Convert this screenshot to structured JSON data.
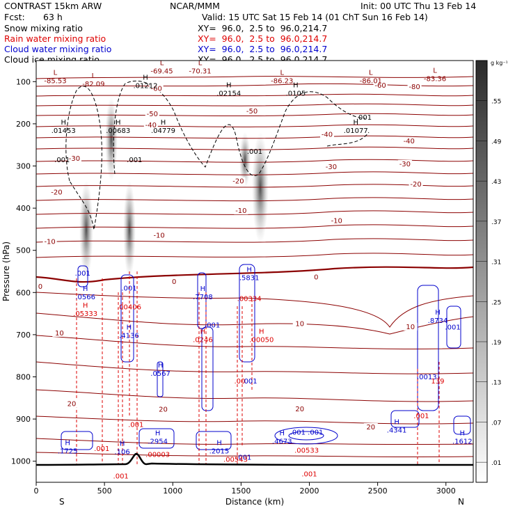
{
  "header": {
    "model": "CONTRAST 15km ARW",
    "center": "NCAR/MMM",
    "init": "Init: 00 UTC Thu 13 Feb 14",
    "fcst_label": "Fcst:",
    "fcst_value": "63 h",
    "valid": "Valid: 15 UTC Sat 15 Feb 14 (01 ChT Sun 16 Feb 14)"
  },
  "fields": [
    {
      "name": "Snow mixing ratio",
      "xy": "XY=  96.0,  2.5 to  96.0,214.7",
      "color": "#000000"
    },
    {
      "name": "Rain water mixing ratio",
      "xy": "XY=  96.0,  2.5 to  96.0,214.7",
      "color": "#dd0000"
    },
    {
      "name": "Cloud water mixing ratio",
      "xy": "XY=  96.0,  2.5 to  96.0,214.7",
      "color": "#0000cc"
    },
    {
      "name": "Cloud ice mixing ratio",
      "xy": "XY=  96.0,  2.5 to  96.0,214.7",
      "color": "#000000"
    }
  ],
  "chart_data": {
    "type": "contour-cross-section",
    "xlabel": "Distance (km)",
    "ylabel": "Pressure (hPa)",
    "xlim": [
      0,
      3200
    ],
    "ylim": [
      1050,
      50
    ],
    "x_ticks": [
      0,
      500,
      1000,
      1500,
      2000,
      2500,
      3000
    ],
    "y_ticks": [
      100,
      200,
      300,
      400,
      500,
      600,
      700,
      800,
      900,
      1000
    ],
    "end_labels": {
      "left": "S",
      "right": "N"
    },
    "colorbar": {
      "unit": "g kg⁻¹",
      "levels": [
        ".55",
        ".49",
        ".43",
        ".37",
        ".31",
        ".25",
        ".19",
        ".13",
        ".07",
        ".01"
      ]
    },
    "temperature_contour_labels": [
      {
        "x": 30,
        "p": 590,
        "text": "0"
      },
      {
        "x": 1010,
        "p": 578,
        "text": "0"
      },
      {
        "x": 2050,
        "p": 567,
        "text": "0"
      },
      {
        "x": 100,
        "p": 483,
        "text": "-10"
      },
      {
        "x": 900,
        "p": 468,
        "text": "-10"
      },
      {
        "x": 2200,
        "p": 434,
        "text": "-10"
      },
      {
        "x": 1500,
        "p": 410,
        "text": "-10"
      },
      {
        "x": 150,
        "p": 366,
        "text": "-20"
      },
      {
        "x": 1480,
        "p": 340,
        "text": "-20"
      },
      {
        "x": 2780,
        "p": 347,
        "text": "-20"
      },
      {
        "x": 280,
        "p": 286,
        "text": "-30"
      },
      {
        "x": 2160,
        "p": 306,
        "text": "-30"
      },
      {
        "x": 2700,
        "p": 299,
        "text": "-30"
      },
      {
        "x": 840,
        "p": 207,
        "text": "-40"
      },
      {
        "x": 2130,
        "p": 229,
        "text": "-40"
      },
      {
        "x": 2730,
        "p": 245,
        "text": "-40"
      },
      {
        "x": 850,
        "p": 180,
        "text": "-50"
      },
      {
        "x": 1580,
        "p": 174,
        "text": "-50"
      },
      {
        "x": 880,
        "p": 120,
        "text": "-60"
      },
      {
        "x": 2520,
        "p": 113,
        "text": "-60"
      },
      {
        "x": 2770,
        "p": 116,
        "text": "-80"
      },
      {
        "x": 170,
        "p": 700,
        "text": "10"
      },
      {
        "x": 1930,
        "p": 678,
        "text": "10"
      },
      {
        "x": 2740,
        "p": 685,
        "text": "10"
      },
      {
        "x": 260,
        "p": 868,
        "text": "20"
      },
      {
        "x": 930,
        "p": 881,
        "text": "20"
      },
      {
        "x": 1930,
        "p": 880,
        "text": "20"
      },
      {
        "x": 2450,
        "p": 923,
        "text": "20"
      }
    ],
    "low_labels": [
      {
        "x": 140,
        "p": 100,
        "value": "-85.53"
      },
      {
        "x": 420,
        "p": 108,
        "value": "-82.09"
      },
      {
        "x": 920,
        "p": 77,
        "value": "-69.45"
      },
      {
        "x": 1200,
        "p": 77,
        "value": "-70.31"
      },
      {
        "x": 1800,
        "p": 100,
        "value": "-86.23"
      },
      {
        "x": 2450,
        "p": 100,
        "value": "-86.01"
      },
      {
        "x": 2920,
        "p": 95,
        "value": "-83.36"
      }
    ],
    "high_labels": [
      {
        "x": 200,
        "p": 218,
        "value": ".01453",
        "color": "#000000"
      },
      {
        "x": 600,
        "p": 218,
        "value": ".00683",
        "color": "#000000"
      },
      {
        "x": 930,
        "p": 218,
        "value": ".04779",
        "color": "#000000"
      },
      {
        "x": 800,
        "p": 112,
        "value": ".01212",
        "color": "#000000"
      },
      {
        "x": 1410,
        "p": 130,
        "value": ".02154",
        "color": "#000000"
      },
      {
        "x": 1900,
        "p": 130,
        "value": ".0105",
        "color": "#000000"
      },
      {
        "x": 2340,
        "p": 218,
        "value": ".01077",
        "color": "#000000"
      },
      {
        "x": 360,
        "p": 613,
        "value": ".0566",
        "color": "#0000cc"
      },
      {
        "x": 1220,
        "p": 613,
        "value": ".7708",
        "color": "#0000cc"
      },
      {
        "x": 1560,
        "p": 567,
        "value": ".5831",
        "color": "#0000cc"
      },
      {
        "x": 680,
        "p": 704,
        "value": ".4136",
        "color": "#0000cc"
      },
      {
        "x": 910,
        "p": 794,
        "value": ".0567",
        "color": "#0000cc"
      },
      {
        "x": 2940,
        "p": 669,
        "value": ".8734",
        "color": "#0000cc"
      },
      {
        "x": 230,
        "p": 978,
        "value": ".1725",
        "color": "#0000cc"
      },
      {
        "x": 630,
        "p": 980,
        "value": ".106",
        "color": "#0000cc"
      },
      {
        "x": 890,
        "p": 955,
        "value": ".2954",
        "color": "#0000cc"
      },
      {
        "x": 1340,
        "p": 978,
        "value": ".2015",
        "color": "#0000cc"
      },
      {
        "x": 1800,
        "p": 955,
        "value": ".4673",
        "color": "#0000cc"
      },
      {
        "x": 2640,
        "p": 929,
        "value": ".4341",
        "color": "#0000cc"
      },
      {
        "x": 3120,
        "p": 955,
        "value": ".1612",
        "color": "#0000cc"
      },
      {
        "x": 360,
        "p": 652,
        "value": ".05333",
        "color": "#dd0000"
      },
      {
        "x": 1220,
        "p": 714,
        "value": ".0246",
        "color": "#dd0000"
      },
      {
        "x": 1650,
        "p": 714,
        "value": ".00050",
        "color": "#dd0000"
      }
    ],
    "misc_labels": [
      {
        "x": 340,
        "p": 560,
        "text": ".001",
        "color": "#0000cc"
      },
      {
        "x": 680,
        "p": 595,
        "text": ".001",
        "color": "#0000cc"
      },
      {
        "x": 680,
        "p": 640,
        "text": ".00406",
        "color": "#dd0000"
      },
      {
        "x": 1560,
        "p": 620,
        "text": ".00334",
        "color": "#dd0000"
      },
      {
        "x": 1290,
        "p": 683,
        "text": ".001",
        "color": "#0000cc"
      },
      {
        "x": 1490,
        "p": 816,
        "text": ".00",
        "color": "#dd0000"
      },
      {
        "x": 1570,
        "p": 816,
        "text": "001",
        "color": "#0000cc"
      },
      {
        "x": 2860,
        "p": 806,
        "text": ".0013",
        "color": "#0000cc"
      },
      {
        "x": 2940,
        "p": 816,
        "text": "139",
        "color": "#dd0000"
      },
      {
        "x": 3050,
        "p": 688,
        "text": ".001",
        "color": "#0000cc"
      },
      {
        "x": 2820,
        "p": 898,
        "text": ".001",
        "color": "#dd0000"
      },
      {
        "x": 730,
        "p": 919,
        "text": ".001",
        "color": "#dd0000"
      },
      {
        "x": 480,
        "p": 976,
        "text": ".001",
        "color": "#dd0000"
      },
      {
        "x": 890,
        "p": 990,
        "text": ".00003",
        "color": "#dd0000"
      },
      {
        "x": 1520,
        "p": 996,
        "text": ".001",
        "color": "#0000cc"
      },
      {
        "x": 1460,
        "p": 1001,
        "text": ".00543",
        "color": "#dd0000"
      },
      {
        "x": 1980,
        "p": 937,
        "text": ".001 .001",
        "color": "#0000cc"
      },
      {
        "x": 1980,
        "p": 980,
        "text": ".00533",
        "color": "#dd0000"
      },
      {
        "x": 2000,
        "p": 1036,
        "text": ".001",
        "color": "#dd0000"
      },
      {
        "x": 620,
        "p": 1041,
        "text": ".001",
        "color": "#dd0000"
      },
      {
        "x": 190,
        "p": 291,
        "text": ".001",
        "color": "#000000"
      },
      {
        "x": 720,
        "p": 291,
        "text": ".001",
        "color": "#000000"
      },
      {
        "x": 1600,
        "p": 271,
        "text": ".001",
        "color": "#000000"
      },
      {
        "x": 2400,
        "p": 190,
        "text": ".001",
        "color": "#000000"
      }
    ]
  }
}
